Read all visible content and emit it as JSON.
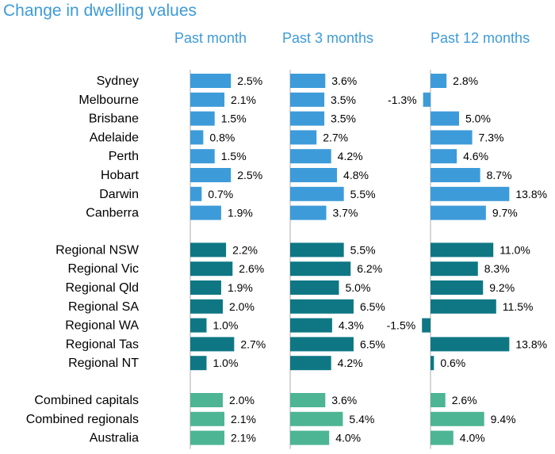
{
  "chart_data": {
    "type": "bar",
    "title": "Change in dwelling values",
    "colors": {
      "capitals": "#3d9bd9",
      "regionals": "#0f7784",
      "aggregates": "#4db594",
      "title": "#3d9bd9",
      "axis": "#c8c8c8"
    },
    "panels": [
      "Past month",
      "Past 3 months",
      "Past 12 months"
    ],
    "groups": [
      {
        "color_key": "capitals",
        "rows": [
          {
            "label": "Sydney",
            "values": [
              2.5,
              3.6,
              2.8
            ],
            "display": [
              "2.5%",
              "3.6%",
              "2.8%"
            ]
          },
          {
            "label": "Melbourne",
            "values": [
              2.1,
              3.5,
              -1.3
            ],
            "display": [
              "2.1%",
              "3.5%",
              "-1.3%"
            ]
          },
          {
            "label": "Brisbane",
            "values": [
              1.5,
              3.5,
              5.0
            ],
            "display": [
              "1.5%",
              "3.5%",
              "5.0%"
            ]
          },
          {
            "label": "Adelaide",
            "values": [
              0.8,
              2.7,
              7.3
            ],
            "display": [
              "0.8%",
              "2.7%",
              "7.3%"
            ]
          },
          {
            "label": "Perth",
            "values": [
              1.5,
              4.2,
              4.6
            ],
            "display": [
              "1.5%",
              "4.2%",
              "4.6%"
            ]
          },
          {
            "label": "Hobart",
            "values": [
              2.5,
              4.8,
              8.7
            ],
            "display": [
              "2.5%",
              "4.8%",
              "8.7%"
            ]
          },
          {
            "label": "Darwin",
            "values": [
              0.7,
              5.5,
              13.8
            ],
            "display": [
              "0.7%",
              "5.5%",
              "13.8%"
            ]
          },
          {
            "label": "Canberra",
            "values": [
              1.9,
              3.7,
              9.7
            ],
            "display": [
              "1.9%",
              "3.7%",
              "9.7%"
            ]
          }
        ]
      },
      {
        "color_key": "regionals",
        "rows": [
          {
            "label": "Regional NSW",
            "values": [
              2.2,
              5.5,
              11.0
            ],
            "display": [
              "2.2%",
              "5.5%",
              "11.0%"
            ]
          },
          {
            "label": "Regional Vic",
            "values": [
              2.6,
              6.2,
              8.3
            ],
            "display": [
              "2.6%",
              "6.2%",
              "8.3%"
            ]
          },
          {
            "label": "Regional Qld",
            "values": [
              1.9,
              5.0,
              9.2
            ],
            "display": [
              "1.9%",
              "5.0%",
              "9.2%"
            ]
          },
          {
            "label": "Regional SA",
            "values": [
              2.0,
              6.5,
              11.5
            ],
            "display": [
              "2.0%",
              "6.5%",
              "11.5%"
            ]
          },
          {
            "label": "Regional WA",
            "values": [
              1.0,
              4.3,
              -1.5
            ],
            "display": [
              "1.0%",
              "4.3%",
              "-1.5%"
            ]
          },
          {
            "label": "Regional Tas",
            "values": [
              2.7,
              6.5,
              13.8
            ],
            "display": [
              "2.7%",
              "6.5%",
              "13.8%"
            ]
          },
          {
            "label": "Regional NT",
            "values": [
              1.0,
              4.2,
              0.6
            ],
            "display": [
              "1.0%",
              "4.2%",
              "0.6%"
            ]
          }
        ]
      },
      {
        "color_key": "aggregates",
        "rows": [
          {
            "label": "Combined capitals",
            "values": [
              2.0,
              3.6,
              2.6
            ],
            "display": [
              "2.0%",
              "3.6%",
              "2.6%"
            ]
          },
          {
            "label": "Combined regionals",
            "values": [
              2.1,
              5.4,
              9.4
            ],
            "display": [
              "2.1%",
              "5.4%",
              "9.4%"
            ]
          },
          {
            "label": "Australia",
            "values": [
              2.1,
              4.0,
              4.0
            ],
            "display": [
              "2.1%",
              "4.0%",
              "4.0%"
            ]
          }
        ]
      }
    ]
  }
}
